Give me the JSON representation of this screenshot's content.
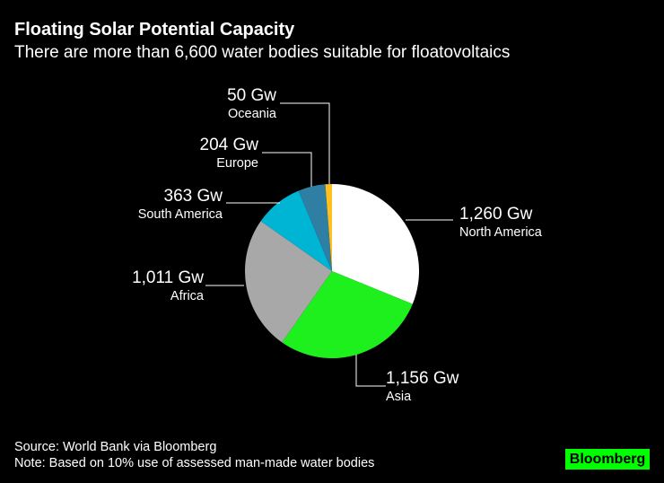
{
  "title": "Floating Solar Potential Capacity",
  "subtitle": "There are more than 6,600 water bodies suitable for floatovoltaics",
  "source": "Source: World Bank via Bloomberg",
  "note": "Note: Based on 10% use of assessed man-made water bodies",
  "logo": "Bloomberg",
  "chart_data": {
    "type": "pie",
    "unit": "Gw",
    "start": "top",
    "direction": "clockwise",
    "slices": [
      {
        "label": "North America",
        "value": 1260,
        "value_label": "1,260 Gw",
        "color": "#ffffff"
      },
      {
        "label": "Asia",
        "value": 1156,
        "value_label": "1,156 Gw",
        "color": "#1ef01e"
      },
      {
        "label": "Africa",
        "value": 1011,
        "value_label": "1,011 Gw",
        "color": "#a8a8a8"
      },
      {
        "label": "South America",
        "value": 363,
        "value_label": "363 Gw",
        "color": "#00b4d4"
      },
      {
        "label": "Europe",
        "value": 204,
        "value_label": "204 Gw",
        "color": "#2f7ea3"
      },
      {
        "label": "Oceania",
        "value": 50,
        "value_label": "50 Gw",
        "color": "#ffbf1f"
      }
    ]
  }
}
